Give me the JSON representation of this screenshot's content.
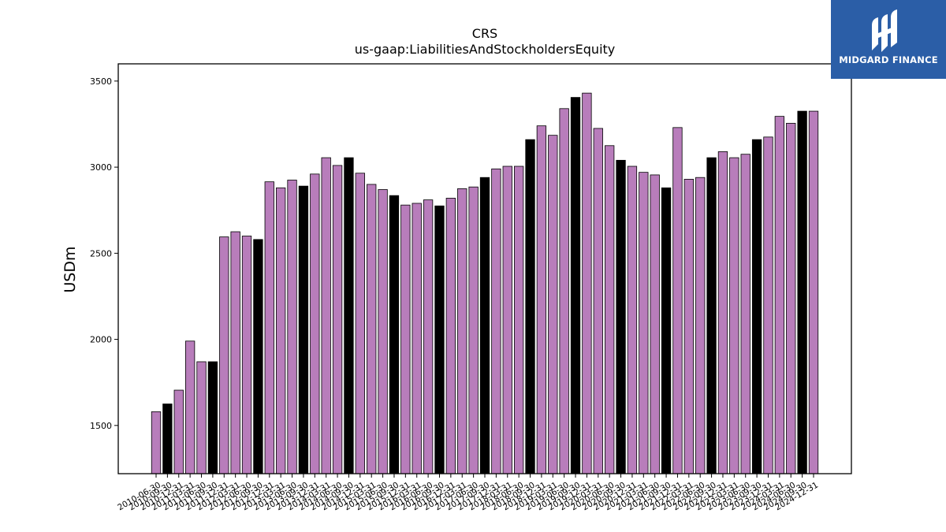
{
  "logo": {
    "text": "MIDGARD FINANCE",
    "icon": "midgard-finance-logo-icon",
    "bg_color": "#2b5ea7"
  },
  "chart_data": {
    "type": "bar",
    "title": "CRS",
    "subtitle": "us-gaap:LiabilitiesAndStockholdersEquity",
    "xlabel": "",
    "ylabel": "USDm",
    "ylim": [
      1220,
      3600
    ],
    "yticks": [
      1500,
      2000,
      2500,
      3000,
      3500
    ],
    "grid": false,
    "colors": {
      "quarter": "#b87dbb",
      "fiscal_year_end": "#000000",
      "edge": "#000000"
    },
    "categories": [
      "2010-06-30",
      "2010-09-30",
      "2010-12-31",
      "2011-03-31",
      "2011-06-30",
      "2011-09-30",
      "2011-12-31",
      "2012-03-31",
      "2012-06-30",
      "2012-09-30",
      "2012-12-31",
      "2013-03-31",
      "2013-06-30",
      "2013-09-30",
      "2013-12-31",
      "2014-03-31",
      "2014-06-30",
      "2014-09-30",
      "2014-12-31",
      "2015-03-31",
      "2015-06-30",
      "2015-09-30",
      "2015-12-31",
      "2016-03-31",
      "2016-06-30",
      "2016-09-30",
      "2016-12-31",
      "2017-03-31",
      "2017-06-30",
      "2017-09-30",
      "2017-12-31",
      "2018-03-31",
      "2018-06-30",
      "2018-09-30",
      "2018-12-31",
      "2019-03-31",
      "2019-06-30",
      "2019-09-30",
      "2019-12-31",
      "2020-03-31",
      "2020-06-30",
      "2020-09-30",
      "2020-12-31",
      "2021-03-31",
      "2021-06-30",
      "2021-09-30",
      "2021-12-31",
      "2022-03-31",
      "2022-06-30",
      "2022-09-30",
      "2022-12-31",
      "2023-03-31",
      "2023-06-30",
      "2023-09-30",
      "2023-12-31",
      "2024-03-31",
      "2024-06-30",
      "2024-09-30",
      "2024-12-31"
    ],
    "tick_labels": [
      "2010-06-30",
      "2010-09-30",
      "2010-12-31",
      "2011-03-31",
      "2011-06-30",
      "2011-09-30",
      "2011-12-31",
      "2012-03-31",
      "2012-06-30",
      "2012-09-30",
      "2012-12-31",
      "2013-03-31",
      "2013-06-30",
      "2013-09-30",
      "2013-12-31",
      "2014-03-31",
      "2014-06-30",
      "2014-09-30",
      "2014-12-31",
      "2015-03-31",
      "2015-06-30",
      "2015-09-30",
      "2015-12-31",
      "2016-03-31",
      "2016-06-30",
      "2016-09-30",
      "2016-12-31",
      "2017-03-31",
      "2017-06-30",
      "2017-09-30",
      "2017-12-31",
      "2018-03-31",
      "2018-06-30",
      "2018-09-30",
      "2018-12-31",
      "2019-03-31",
      "2019-06-30",
      "2019-09-30",
      "2019-12-31",
      "2020-03-31",
      "2020-06-30",
      "2020-09-30",
      "2020-12-31",
      "2021-03-31",
      "2021-06-30",
      "2021-09-30",
      "2021-12-31",
      "2022-03-31",
      "2022-06-30",
      "2022-09-30",
      "2022-12-31",
      "2023-03-31",
      "2023-06-30",
      "2023-09-30",
      "2023-12-31",
      "2024-03-31",
      "2024-06-30",
      "2024-09-30",
      "2024-12-31"
    ],
    "fiscal_year_end": [
      false,
      true,
      false,
      false,
      false,
      true,
      false,
      false,
      false,
      true,
      false,
      false,
      false,
      true,
      false,
      false,
      false,
      true,
      false,
      false,
      false,
      true,
      false,
      false,
      false,
      true,
      false,
      false,
      false,
      true,
      false,
      false,
      false,
      true,
      false,
      false,
      false,
      true,
      false,
      false,
      false,
      true,
      false,
      false,
      false,
      true,
      false,
      false,
      false,
      true,
      false,
      false,
      false,
      true,
      false,
      false,
      false,
      true,
      false
    ],
    "values": [
      1580,
      1625,
      1705,
      1990,
      1870,
      1870,
      2595,
      2625,
      2600,
      2580,
      2915,
      2880,
      2925,
      2890,
      2960,
      3055,
      3010,
      3055,
      2965,
      2900,
      2870,
      2835,
      2780,
      2790,
      2810,
      2775,
      2820,
      2875,
      2885,
      2940,
      2990,
      3005,
      3005,
      3160,
      3240,
      3185,
      3340,
      3405,
      3430,
      3225,
      3125,
      3040,
      3005,
      2970,
      2955,
      2880,
      3230,
      2930,
      2940,
      3055,
      3090,
      3055,
      3075,
      3160,
      3175,
      3295,
      3255,
      3325,
      3325
    ]
  }
}
